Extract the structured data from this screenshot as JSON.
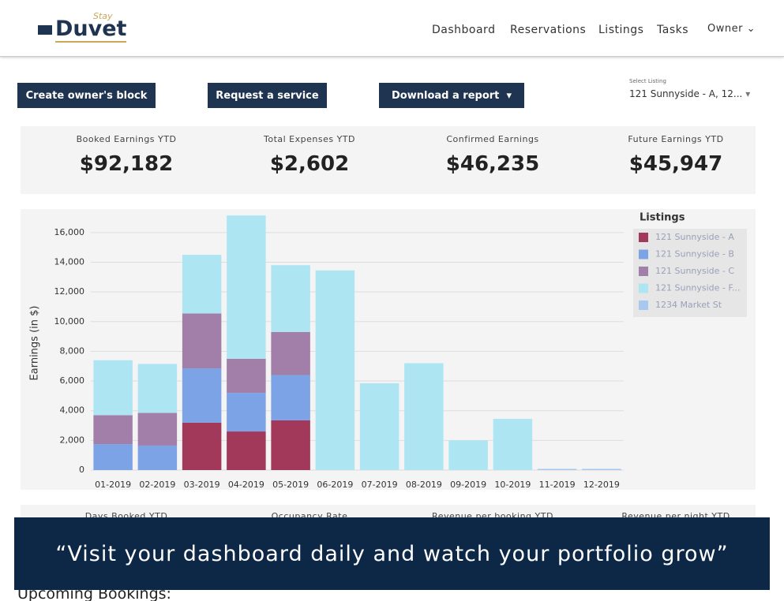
{
  "header": {
    "logo_small": "Stay",
    "logo": "Duvet",
    "nav": [
      "Dashboard",
      "Reservations",
      "Listings",
      "Tasks",
      "Owner"
    ]
  },
  "buttons": [
    "Create owner's block",
    "Request a service",
    "Download a report"
  ],
  "select": {
    "label": "Select Listing",
    "value": "121 Sunnyside - A, 12..."
  },
  "stats": [
    {
      "label": "Booked Earnings YTD",
      "value": "$92,182"
    },
    {
      "label": "Total Expenses YTD",
      "value": "$2,602"
    },
    {
      "label": "Confirmed Earnings",
      "value": "$46,235"
    },
    {
      "label": "Future Earnings YTD",
      "value": "$45,947"
    }
  ],
  "chart_data": {
    "type": "stacked_bar",
    "ylabel": "Earnings (in $)",
    "legend_title": "Listings",
    "legend": "right",
    "categories": [
      "01-2019",
      "02-2019",
      "03-2019",
      "04-2019",
      "05-2019",
      "06-2019",
      "07-2019",
      "08-2019",
      "09-2019",
      "10-2019",
      "11-2019",
      "12-2019"
    ],
    "ylim": [
      0,
      17000
    ],
    "yticks": [
      0,
      {
        "value": 2000,
        "label": "2,000"
      },
      {
        "value": 4000,
        "label": "4,000"
      },
      {
        "value": 6000,
        "label": "6,000"
      },
      {
        "value": 8000,
        "label": "8,000"
      },
      {
        "value": 10000,
        "label": "10,000"
      },
      {
        "value": 12000,
        "label": "12,000"
      },
      {
        "value": 14000,
        "label": "14,000"
      },
      {
        "value": 16000,
        "label": "16,000"
      }
    ],
    "grid": true,
    "series": [
      {
        "name": "121 Sunnyside - A",
        "color": "#a3395a",
        "values": [
          0,
          0,
          3200,
          2600,
          3350,
          0,
          0,
          0,
          0,
          0,
          0,
          0
        ]
      },
      {
        "name": "121 Sunnyside - B",
        "color": "#7ba3e6",
        "values": [
          1750,
          1650,
          3650,
          2600,
          3050,
          0,
          0,
          0,
          0,
          0,
          0,
          0
        ]
      },
      {
        "name": "121 Sunnyside - C",
        "color": "#a17fa8",
        "values": [
          1950,
          2200,
          3700,
          2300,
          2900,
          0,
          0,
          0,
          0,
          0,
          0,
          0
        ]
      },
      {
        "name": "121 Sunnyside - F...",
        "color": "#aee5f3",
        "values": [
          3700,
          3300,
          3950,
          9650,
          4500,
          13450,
          5850,
          7200,
          2000,
          3450,
          0,
          0
        ]
      },
      {
        "name": "1234 Market St",
        "color": "#a9c8ef",
        "values": [
          0,
          0,
          0,
          0,
          0,
          0,
          0,
          0,
          0,
          0,
          80,
          80
        ]
      }
    ]
  },
  "stats2": [
    "Days Booked YTD",
    "Occupancy Rate",
    "Revenue per booking YTD",
    "Revenue per night YTD"
  ],
  "bookings_title": "Upcoming Bookings:",
  "banner": "“Visit your dashboard daily and watch your portfolio grow”"
}
